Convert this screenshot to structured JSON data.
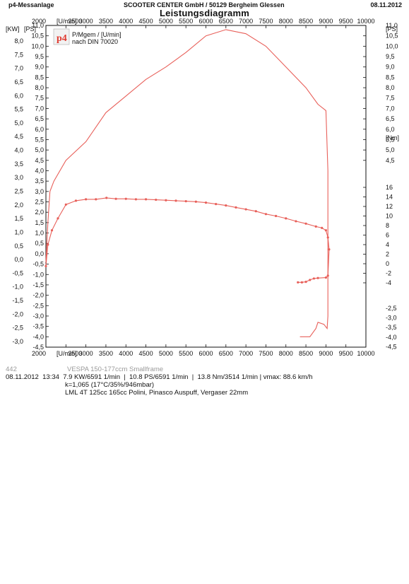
{
  "header": {
    "left": "p4-Messanlage",
    "center": "SCOOTER CENTER GmbH / 50129 Bergheim Glessen",
    "right": "08.11.2012"
  },
  "legend": {
    "logo_text": "p4",
    "line1": "P/Mgem / [U/min]",
    "line2": "nach DIN 70020"
  },
  "footer": {
    "run_id": "442",
    "vehicle": "VESPA 150-177ccm Smallframe",
    "date": "08.11.2012",
    "time": "13:34",
    "kw_result": "7.9 KW/6591 1/min",
    "ps_result": "10.8 PS/6591 1/min",
    "torque_result": "13.8 Nm/3514 1/min",
    "vmax": "vmax: 88.6 km/h",
    "correction": "k=1,065 (17°C/35%/946mbar)",
    "setup": "LML 4T 125cc 165cc Polini, Pinasco Auspuff, Vergaser 22mm"
  },
  "colors": {
    "curve": "#e8605a",
    "axis": "#111111"
  },
  "chart_data": {
    "type": "line",
    "title": "Leistungsdiagramm",
    "x_unit_label": "[U/min]",
    "x_ticks": [
      "2000",
      "2500",
      "3000",
      "3500",
      "4000",
      "4500",
      "5000",
      "5500",
      "6000",
      "6500",
      "7000",
      "7500",
      "8000",
      "8500",
      "9000",
      "9500",
      "10000"
    ],
    "xlim": [
      2000,
      10000
    ],
    "left_axis_1": {
      "label": "[KW]",
      "ticks": [
        "8,0",
        "7,5",
        "7,0",
        "6,5",
        "6,0",
        "5,5",
        "5,0",
        "4,5",
        "4,0",
        "3,5",
        "3,0",
        "2,5",
        "2,0",
        "1,5",
        "1,0",
        "0,5",
        "0,0",
        "-0,5",
        "-1,0",
        "-1,5",
        "-2,0",
        "-2,5",
        "-3,0"
      ],
      "ylim": [
        -3.0,
        8.0
      ]
    },
    "left_axis_2": {
      "label": "[PS]",
      "ticks": [
        "11,0",
        "10,5",
        "10,0",
        "9,5",
        "9,0",
        "8,5",
        "8,0",
        "7,5",
        "7,0",
        "6,5",
        "6,0",
        "5,5",
        "5,0",
        "4,5",
        "4,0",
        "3,5",
        "3,0",
        "2,5",
        "2,0",
        "1,5",
        "1,0",
        "0,5",
        "0,0",
        "-0,5",
        "-1,0",
        "-1,5",
        "-2,0",
        "-2,5",
        "-3,0",
        "-3,5",
        "-4,0",
        "-4,5"
      ],
      "ylim": [
        -4.5,
        11.0
      ]
    },
    "right_axis_ps": {
      "label": "[PS]",
      "ticks": [
        "11,0",
        "10,5",
        "10,0",
        "9,5",
        "9,0",
        "8,5",
        "8,0",
        "7,5",
        "7,0",
        "6,5",
        "6,0",
        "5,5",
        "5,0",
        "4,5"
      ],
      "lower_ticks": [
        "-2,5",
        "-3,0",
        "-3,5",
        "-4,0",
        "-4,5"
      ]
    },
    "right_axis_nm": {
      "label": "[Nm]",
      "ticks": [
        "16",
        "14",
        "12",
        "10",
        "8",
        "6",
        "4",
        "2",
        "0",
        "-2",
        "-4"
      ],
      "ylim": [
        -4,
        16
      ]
    },
    "series": [
      {
        "axis": "ps",
        "points": [
          [
            2000,
            -0.4
          ],
          [
            2050,
            1.5
          ],
          [
            2100,
            3.0
          ],
          [
            2200,
            3.5
          ],
          [
            2500,
            4.5
          ],
          [
            3000,
            5.4
          ],
          [
            3500,
            6.8
          ],
          [
            4000,
            7.6
          ],
          [
            4500,
            8.4
          ],
          [
            5000,
            9.0
          ],
          [
            5500,
            9.7
          ],
          [
            6000,
            10.5
          ],
          [
            6500,
            10.8
          ],
          [
            7000,
            10.6
          ],
          [
            7500,
            10.0
          ],
          [
            8000,
            9.0
          ],
          [
            8500,
            8.0
          ],
          [
            8800,
            7.2
          ],
          [
            9000,
            6.9
          ],
          [
            9050,
            4.0
          ],
          [
            9050,
            0.0
          ],
          [
            9050,
            -3.0
          ],
          [
            9030,
            -3.6
          ],
          [
            8950,
            -3.4
          ],
          [
            8800,
            -3.3
          ],
          [
            8750,
            -3.6
          ],
          [
            8600,
            -4.0
          ],
          [
            8350,
            -4.0
          ]
        ]
      },
      {
        "axis": "nm",
        "markers": true,
        "points": [
          [
            2000,
            -0.5
          ],
          [
            2050,
            4.0
          ],
          [
            2150,
            7.0
          ],
          [
            2300,
            9.5
          ],
          [
            2500,
            12.4
          ],
          [
            2750,
            13.2
          ],
          [
            3000,
            13.5
          ],
          [
            3250,
            13.5
          ],
          [
            3514,
            13.8
          ],
          [
            3750,
            13.6
          ],
          [
            4000,
            13.6
          ],
          [
            4250,
            13.5
          ],
          [
            4500,
            13.5
          ],
          [
            4750,
            13.4
          ],
          [
            5000,
            13.3
          ],
          [
            5250,
            13.2
          ],
          [
            5500,
            13.1
          ],
          [
            5750,
            13.0
          ],
          [
            6000,
            12.8
          ],
          [
            6250,
            12.5
          ],
          [
            6500,
            12.2
          ],
          [
            6750,
            11.8
          ],
          [
            7000,
            11.4
          ],
          [
            7250,
            11.0
          ],
          [
            7500,
            10.4
          ],
          [
            7750,
            10.0
          ],
          [
            8000,
            9.5
          ],
          [
            8250,
            8.9
          ],
          [
            8500,
            8.4
          ],
          [
            8750,
            7.8
          ],
          [
            8900,
            7.5
          ],
          [
            9000,
            7.0
          ],
          [
            9050,
            5.5
          ],
          [
            9080,
            3.0
          ],
          [
            9050,
            -2.5
          ],
          [
            9000,
            -2.9
          ],
          [
            8800,
            -3.0
          ],
          [
            8700,
            -3.1
          ],
          [
            8600,
            -3.4
          ],
          [
            8500,
            -3.8
          ],
          [
            8400,
            -3.9
          ],
          [
            8300,
            -3.9
          ]
        ]
      }
    ]
  }
}
